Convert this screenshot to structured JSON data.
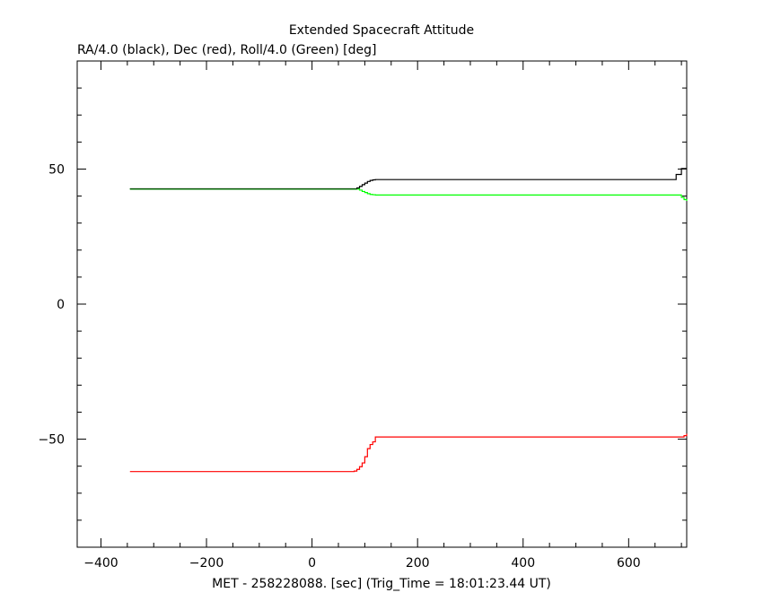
{
  "chart_data": {
    "type": "line",
    "title": "Extended Spacecraft Attitude",
    "subtitle": "RA/4.0 (black), Dec (red), Roll/4.0 (Green) [deg]",
    "xlabel": "MET - 258228088. [sec] (Trig_Time = 18:01:23.44 UT)",
    "ylabel": "",
    "xlim": [
      -445,
      710
    ],
    "ylim": [
      -90,
      90
    ],
    "x_ticks": [
      -400,
      -200,
      0,
      200,
      400,
      600
    ],
    "x_tick_labels": [
      "−400",
      "−200",
      "0",
      "200",
      "400",
      "600"
    ],
    "y_ticks": [
      -50,
      0,
      50
    ],
    "y_tick_labels": [
      "−50",
      "0",
      "50"
    ],
    "grid": false,
    "legend": "none",
    "series": [
      {
        "name": "RA/4.0",
        "color": "#000000",
        "x": [
          -345,
          80,
          85,
          90,
          95,
          100,
          105,
          110,
          115,
          120,
          690,
          690,
          700,
          700,
          710
        ],
        "y": [
          42.7,
          42.7,
          43.0,
          43.6,
          44.2,
          44.8,
          45.4,
          45.8,
          46.0,
          46.1,
          46.1,
          48.0,
          48.0,
          50.2,
          50.2
        ]
      },
      {
        "name": "Dec",
        "color": "#ff0000",
        "x": [
          -345,
          75,
          80,
          85,
          90,
          95,
          100,
          105,
          110,
          115,
          120,
          700,
          705,
          710
        ],
        "y": [
          -62.0,
          -62.0,
          -61.8,
          -61.2,
          -60.2,
          -58.8,
          -56.5,
          -53.5,
          -52.0,
          -51.0,
          -49.2,
          -49.2,
          -48.7,
          -48.0
        ]
      },
      {
        "name": "Roll/4.0",
        "color": "#00ff00",
        "x": [
          -345,
          85,
          90,
          95,
          100,
          105,
          110,
          115,
          120,
          690,
          700,
          705,
          710
        ],
        "y": [
          42.6,
          42.6,
          42.2,
          41.7,
          41.3,
          40.9,
          40.6,
          40.5,
          40.4,
          40.4,
          39.5,
          38.7,
          38.2
        ]
      }
    ],
    "overlay_green_dark_segment": {
      "name": "Roll/4.0 (overlap)",
      "color": "#006400",
      "x": [
        -345,
        85
      ],
      "y": [
        42.6,
        42.6
      ]
    }
  }
}
